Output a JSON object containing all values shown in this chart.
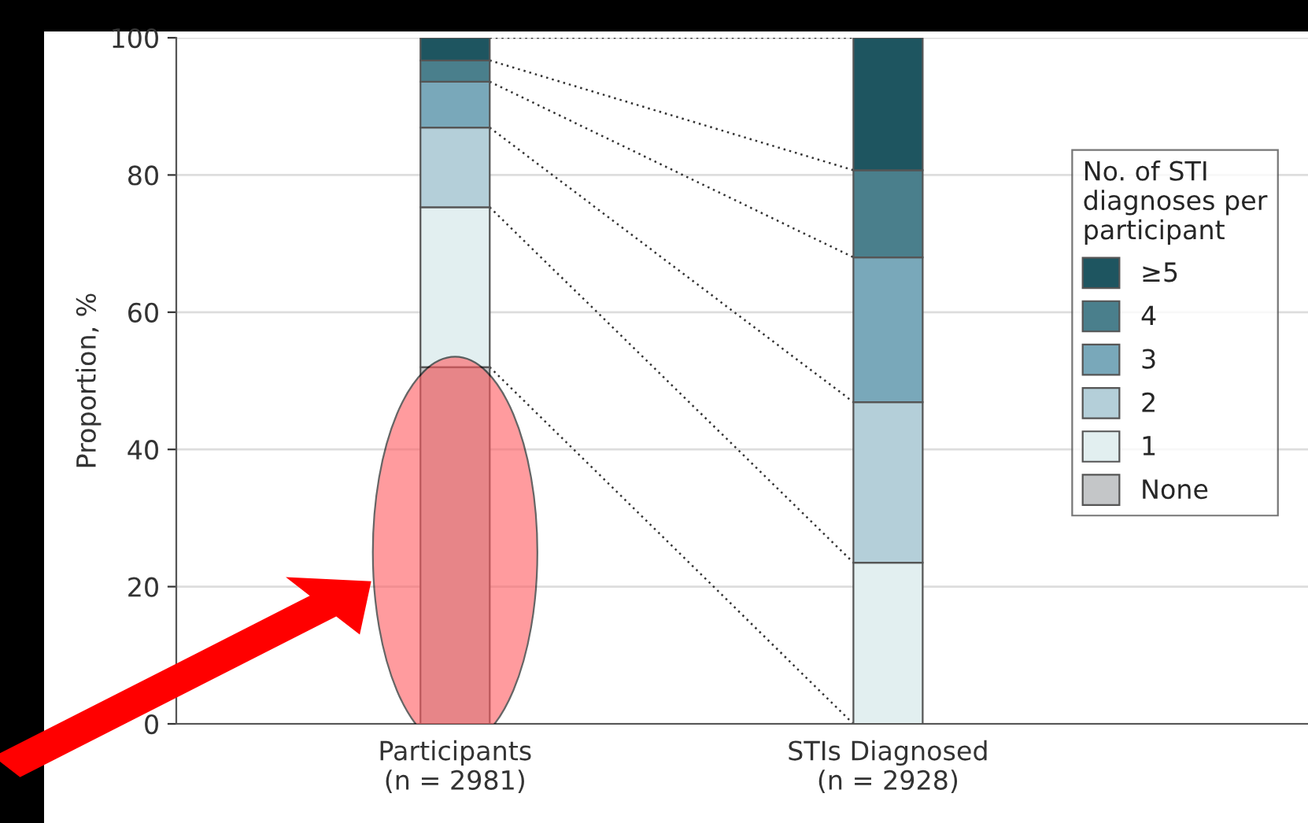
{
  "chart_data": {
    "type": "bar",
    "stacked": true,
    "categories": [
      "Participants\n(n = 2981)",
      "STIs Diagnosed\n(n = 2928)"
    ],
    "ylabel": "Proportion, %",
    "ylim": [
      0,
      100
    ],
    "yticks": [
      0,
      20,
      40,
      60,
      80,
      100
    ],
    "grid": "y",
    "legend": "right",
    "legend_title": "No. of STI\ndiagnoses per\nparticipant",
    "series": [
      {
        "name": "None",
        "color": "#c4c6c8",
        "values": [
          52.0,
          0
        ]
      },
      {
        "name": "1",
        "color": "#e2eff0",
        "values": [
          23.3,
          23.5
        ]
      },
      {
        "name": "2",
        "color": "#b4cfd9",
        "values": [
          11.6,
          23.4
        ]
      },
      {
        "name": "3",
        "color": "#79a8ba",
        "values": [
          6.7,
          21.1
        ]
      },
      {
        "name": "4",
        "color": "#4a7f8c",
        "values": [
          3.1,
          12.7
        ]
      },
      {
        "name": "≥5",
        "color": "#1e5560",
        "values": [
          3.3,
          19.3
        ]
      }
    ]
  }
}
